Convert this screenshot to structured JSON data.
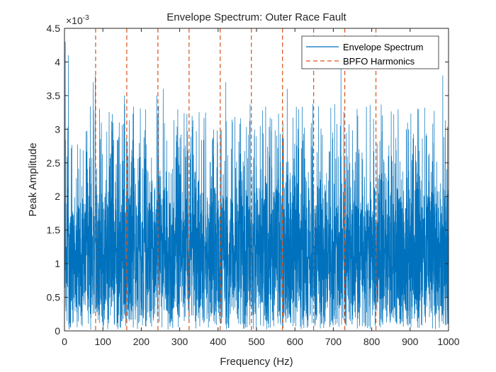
{
  "chart_data": {
    "type": "line",
    "title": "Envelope Spectrum: Outer Race Fault",
    "xlabel": "Frequency (Hz)",
    "ylabel": "Peak Amplitude",
    "xlim": [
      0,
      1000
    ],
    "ylim": [
      0,
      0.0045
    ],
    "y_exponent_base": "×10",
    "y_exponent_power": "-3",
    "x_ticks": [
      0,
      100,
      200,
      300,
      400,
      500,
      600,
      700,
      800,
      900,
      1000
    ],
    "x_tick_labels": [
      "0",
      "100",
      "200",
      "300",
      "400",
      "500",
      "600",
      "700",
      "800",
      "900",
      "1000"
    ],
    "y_ticks": [
      0,
      0.0005,
      0.001,
      0.0015,
      0.002,
      0.0025,
      0.003,
      0.0035,
      0.004,
      0.0045
    ],
    "y_tick_labels": [
      "0",
      "0.5",
      "1",
      "1.5",
      "2",
      "2.5",
      "3",
      "3.5",
      "4",
      "4.5"
    ],
    "grid": false,
    "legend_position": "top-right",
    "series": [
      {
        "name": "Envelope Spectrum",
        "style": "solid",
        "color": "#0072BD",
        "points": 4000,
        "x_range": [
          0,
          1000
        ],
        "mean": 0.0012,
        "typical_range": [
          0.0003,
          0.0025
        ],
        "peaks": [
          {
            "x": 2,
            "y": 0.0043
          },
          {
            "x": 10,
            "y": 0.0041
          },
          {
            "x": 75,
            "y": 0.0037
          },
          {
            "x": 80,
            "y": 0.0038
          },
          {
            "x": 156,
            "y": 0.0035
          },
          {
            "x": 240,
            "y": 0.0035
          },
          {
            "x": 257,
            "y": 0.0036
          },
          {
            "x": 420,
            "y": 0.0037
          },
          {
            "x": 580,
            "y": 0.0036
          },
          {
            "x": 720,
            "y": 0.0039
          },
          {
            "x": 985,
            "y": 0.0038
          }
        ]
      },
      {
        "name": "BPFO Harmonics",
        "style": "dashed",
        "color": "#D95319",
        "x_values": [
          81.1,
          162.2,
          243.3,
          324.4,
          405.5,
          486.6,
          567.7,
          648.8,
          729.9,
          811.0
        ]
      }
    ]
  }
}
